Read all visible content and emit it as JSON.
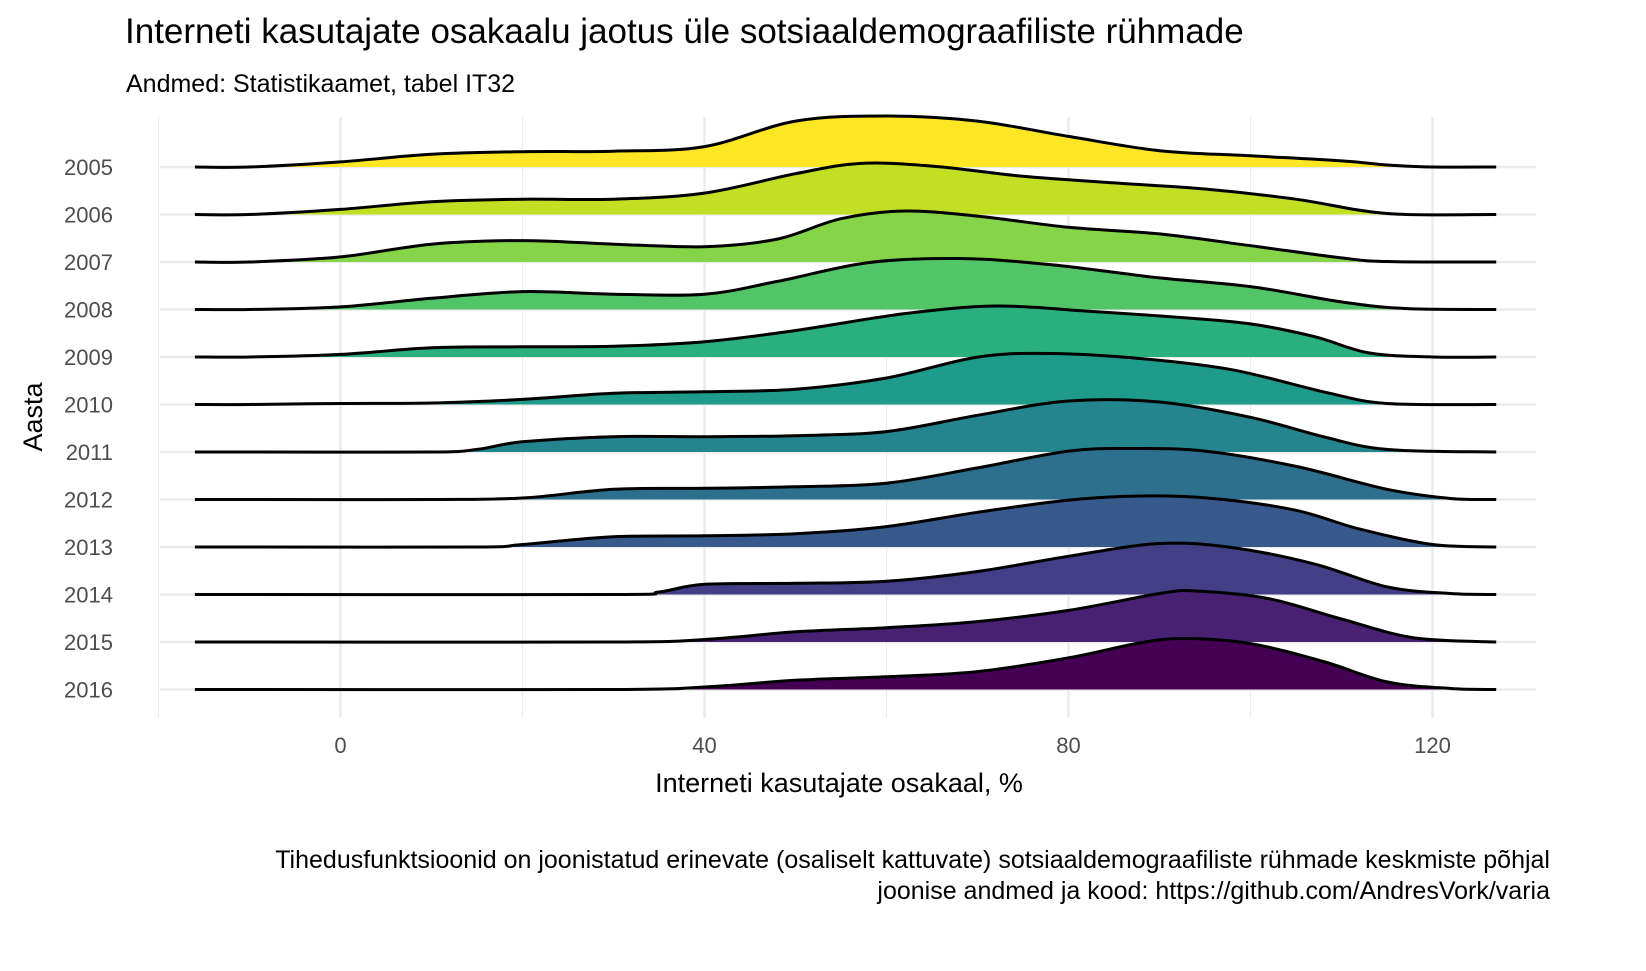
{
  "chart_data": {
    "type": "area",
    "subtype": "ridgeline",
    "title": "Interneti kasutajate osakaalu jaotus üle sotsiaaldemograafiliste rühmade",
    "subtitle": "Andmed: Statistikaamet, tabel IT32",
    "xlabel": "Interneti kasutajate osakaal, %",
    "ylabel": "Aasta",
    "caption": [
      "Tihedusfunktsioonid on joonistatud erinevate (osaliselt kattuvate) sotsiaaldemograafiliste rühmade keskmiste põhjal",
      "joonise andmed ja kood: https://github.com/AndresVork/varia"
    ],
    "xlim": [
      -20,
      130
    ],
    "xticks": [
      0,
      40,
      80,
      120
    ],
    "xtick_labels": [
      "0",
      "40",
      "80",
      "120"
    ],
    "grid": true,
    "legend": "none",
    "categories": [
      "2005",
      "2006",
      "2007",
      "2008",
      "2009",
      "2010",
      "2011",
      "2012",
      "2013",
      "2014",
      "2015",
      "2016"
    ],
    "series": [
      {
        "year": "2005",
        "color": "#FDE725",
        "points": [
          [
            -16,
            0
          ],
          [
            -10,
            0
          ],
          [
            0,
            0.1
          ],
          [
            10,
            0.25
          ],
          [
            20,
            0.3
          ],
          [
            30,
            0.31
          ],
          [
            40,
            0.4
          ],
          [
            50,
            0.9
          ],
          [
            60,
            1.0
          ],
          [
            70,
            0.9
          ],
          [
            80,
            0.6
          ],
          [
            90,
            0.32
          ],
          [
            100,
            0.22
          ],
          [
            110,
            0.12
          ],
          [
            115,
            0.04
          ],
          [
            120,
            0
          ],
          [
            127,
            0
          ]
        ]
      },
      {
        "year": "2006",
        "color": "#C2DF23",
        "points": [
          [
            -16,
            0
          ],
          [
            -10,
            0
          ],
          [
            0,
            0.1
          ],
          [
            10,
            0.25
          ],
          [
            20,
            0.3
          ],
          [
            30,
            0.3
          ],
          [
            40,
            0.42
          ],
          [
            50,
            0.8
          ],
          [
            57,
            1.0
          ],
          [
            65,
            0.95
          ],
          [
            75,
            0.75
          ],
          [
            85,
            0.62
          ],
          [
            95,
            0.5
          ],
          [
            105,
            0.3
          ],
          [
            115,
            0.02
          ],
          [
            127,
            0
          ]
        ]
      },
      {
        "year": "2007",
        "color": "#86D549",
        "points": [
          [
            -16,
            0
          ],
          [
            -10,
            0
          ],
          [
            0,
            0.1
          ],
          [
            10,
            0.35
          ],
          [
            20,
            0.42
          ],
          [
            30,
            0.35
          ],
          [
            40,
            0.3
          ],
          [
            48,
            0.45
          ],
          [
            55,
            0.85
          ],
          [
            62,
            1.0
          ],
          [
            70,
            0.9
          ],
          [
            80,
            0.68
          ],
          [
            90,
            0.55
          ],
          [
            100,
            0.32
          ],
          [
            110,
            0.08
          ],
          [
            115,
            0.01
          ],
          [
            127,
            0
          ]
        ]
      },
      {
        "year": "2008",
        "color": "#52C569",
        "points": [
          [
            -16,
            0
          ],
          [
            -10,
            0
          ],
          [
            0,
            0.05
          ],
          [
            10,
            0.22
          ],
          [
            20,
            0.35
          ],
          [
            30,
            0.3
          ],
          [
            40,
            0.3
          ],
          [
            48,
            0.55
          ],
          [
            58,
            0.92
          ],
          [
            68,
            1.0
          ],
          [
            78,
            0.88
          ],
          [
            90,
            0.62
          ],
          [
            100,
            0.45
          ],
          [
            110,
            0.15
          ],
          [
            117,
            0.02
          ],
          [
            127,
            0
          ]
        ]
      },
      {
        "year": "2009",
        "color": "#2AB07F",
        "points": [
          [
            -16,
            0
          ],
          [
            -10,
            0
          ],
          [
            0,
            0.05
          ],
          [
            10,
            0.18
          ],
          [
            20,
            0.2
          ],
          [
            30,
            0.21
          ],
          [
            40,
            0.3
          ],
          [
            50,
            0.52
          ],
          [
            62,
            0.85
          ],
          [
            72,
            1.0
          ],
          [
            82,
            0.9
          ],
          [
            92,
            0.78
          ],
          [
            100,
            0.65
          ],
          [
            107,
            0.4
          ],
          [
            113,
            0.08
          ],
          [
            120,
            0
          ],
          [
            127,
            0
          ]
        ]
      },
      {
        "year": "2010",
        "color": "#1E9B8A",
        "points": [
          [
            -16,
            0
          ],
          [
            -10,
            0
          ],
          [
            0,
            0.02
          ],
          [
            10,
            0.03
          ],
          [
            20,
            0.1
          ],
          [
            30,
            0.22
          ],
          [
            40,
            0.25
          ],
          [
            50,
            0.3
          ],
          [
            60,
            0.52
          ],
          [
            70,
            0.93
          ],
          [
            78,
            1.0
          ],
          [
            88,
            0.9
          ],
          [
            98,
            0.68
          ],
          [
            108,
            0.25
          ],
          [
            115,
            0.02
          ],
          [
            127,
            0
          ]
        ]
      },
      {
        "year": "2011",
        "color": "#25858E",
        "points": [
          [
            -16,
            0
          ],
          [
            -10,
            0
          ],
          [
            10,
            0
          ],
          [
            15,
            0.05
          ],
          [
            20,
            0.2
          ],
          [
            30,
            0.3
          ],
          [
            40,
            0.3
          ],
          [
            50,
            0.32
          ],
          [
            60,
            0.4
          ],
          [
            70,
            0.72
          ],
          [
            80,
            1.0
          ],
          [
            90,
            0.98
          ],
          [
            100,
            0.68
          ],
          [
            108,
            0.3
          ],
          [
            115,
            0.05
          ],
          [
            127,
            0
          ]
        ]
      },
      {
        "year": "2012",
        "color": "#2D708E",
        "points": [
          [
            -16,
            0
          ],
          [
            -10,
            0
          ],
          [
            10,
            0
          ],
          [
            20,
            0.03
          ],
          [
            30,
            0.2
          ],
          [
            40,
            0.22
          ],
          [
            50,
            0.25
          ],
          [
            60,
            0.32
          ],
          [
            70,
            0.62
          ],
          [
            80,
            0.95
          ],
          [
            87,
            1.0
          ],
          [
            95,
            0.95
          ],
          [
            105,
            0.65
          ],
          [
            115,
            0.2
          ],
          [
            122,
            0.02
          ],
          [
            127,
            0
          ]
        ]
      },
      {
        "year": "2013",
        "color": "#38598C",
        "points": [
          [
            -16,
            0
          ],
          [
            -10,
            0
          ],
          [
            15,
            0
          ],
          [
            20,
            0.05
          ],
          [
            30,
            0.2
          ],
          [
            40,
            0.22
          ],
          [
            50,
            0.26
          ],
          [
            60,
            0.4
          ],
          [
            70,
            0.68
          ],
          [
            80,
            0.92
          ],
          [
            88,
            1.0
          ],
          [
            96,
            0.95
          ],
          [
            105,
            0.72
          ],
          [
            112,
            0.35
          ],
          [
            120,
            0.05
          ],
          [
            127,
            0
          ]
        ]
      },
      {
        "year": "2014",
        "color": "#433E85",
        "points": [
          [
            -16,
            0
          ],
          [
            -10,
            0
          ],
          [
            30,
            0
          ],
          [
            35,
            0.05
          ],
          [
            40,
            0.2
          ],
          [
            50,
            0.22
          ],
          [
            60,
            0.26
          ],
          [
            70,
            0.45
          ],
          [
            80,
            0.75
          ],
          [
            90,
            1.0
          ],
          [
            98,
            0.92
          ],
          [
            107,
            0.6
          ],
          [
            115,
            0.15
          ],
          [
            122,
            0.02
          ],
          [
            127,
            0
          ]
        ]
      },
      {
        "year": "2015",
        "color": "#482173",
        "points": [
          [
            -16,
            0
          ],
          [
            -10,
            0
          ],
          [
            30,
            0
          ],
          [
            40,
            0.05
          ],
          [
            50,
            0.2
          ],
          [
            60,
            0.28
          ],
          [
            70,
            0.4
          ],
          [
            80,
            0.62
          ],
          [
            90,
            0.95
          ],
          [
            94,
            1.0
          ],
          [
            102,
            0.85
          ],
          [
            110,
            0.45
          ],
          [
            118,
            0.08
          ],
          [
            127,
            0
          ]
        ]
      },
      {
        "year": "2016",
        "color": "#440154",
        "points": [
          [
            -16,
            0
          ],
          [
            -10,
            0
          ],
          [
            30,
            0
          ],
          [
            40,
            0.05
          ],
          [
            50,
            0.18
          ],
          [
            60,
            0.25
          ],
          [
            70,
            0.35
          ],
          [
            80,
            0.62
          ],
          [
            88,
            0.92
          ],
          [
            93,
            1.0
          ],
          [
            100,
            0.9
          ],
          [
            108,
            0.55
          ],
          [
            115,
            0.15
          ],
          [
            122,
            0.02
          ],
          [
            127,
            0
          ]
        ]
      }
    ]
  }
}
